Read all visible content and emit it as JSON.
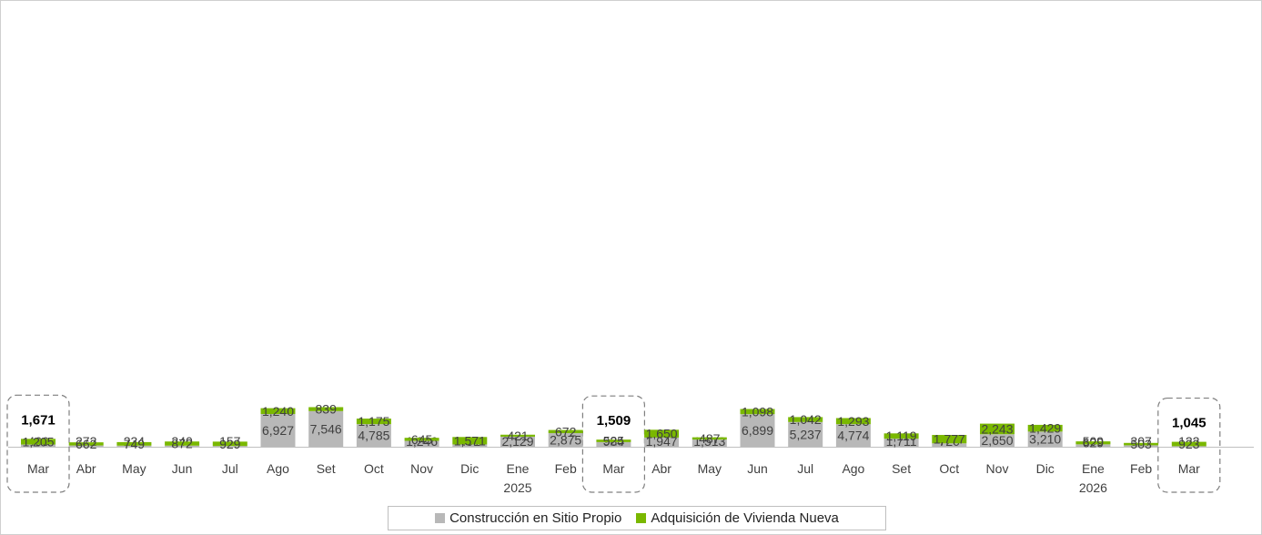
{
  "colors": {
    "construccion": "#b8b8b8",
    "adquisicion": "#7ab800",
    "highlight_box": "#7f7f7f",
    "baseline": "#bfbfbf"
  },
  "legend": {
    "construccion": "Construcción en Sitio Propio",
    "adquisicion": "Adquisición de Vivienda Nueva"
  },
  "chart_data": {
    "type": "bar",
    "stacked": true,
    "categories": [
      "Mar",
      "Abr",
      "May",
      "Jun",
      "Jul",
      "Ago",
      "Set",
      "Oct",
      "Nov",
      "Dic",
      "Ene",
      "Feb",
      "Mar",
      "Abr",
      "May",
      "Jun",
      "Jul",
      "Ago",
      "Set",
      "Oct",
      "Nov",
      "Dic",
      "Ene",
      "Feb",
      "Mar"
    ],
    "year_labels": [
      {
        "index": 10,
        "label": "2025"
      },
      {
        "index": 22,
        "label": "2026"
      }
    ],
    "series": [
      {
        "name": "Construcción en Sitio Propio",
        "color": "#b8b8b8",
        "values": [
          466,
          272,
          234,
          240,
          157,
          6927,
          7546,
          4785,
          1246,
          491,
          2129,
          2875,
          984,
          1947,
          1513,
          6899,
          5237,
          4774,
          1711,
          720,
          2650,
          3210,
          509,
          307,
          122
        ]
      },
      {
        "name": "Adquisición de Vivienda Nueva",
        "color": "#7ab800",
        "values": [
          1205,
          662,
          749,
          872,
          929,
          1240,
          839,
          1175,
          645,
          1571,
          421,
          672,
          525,
          1650,
          487,
          1098,
          1042,
          1293,
          1119,
          1777,
          2243,
          1429,
          629,
          503,
          923
        ]
      }
    ],
    "highlighted": [
      {
        "index": 0,
        "total_label": "1,671"
      },
      {
        "index": 12,
        "total_label": "1,509"
      },
      {
        "index": 24,
        "total_label": "1,045"
      }
    ],
    "ylim": [
      0,
      8600
    ],
    "grid": false,
    "legend_position": "bottom"
  }
}
